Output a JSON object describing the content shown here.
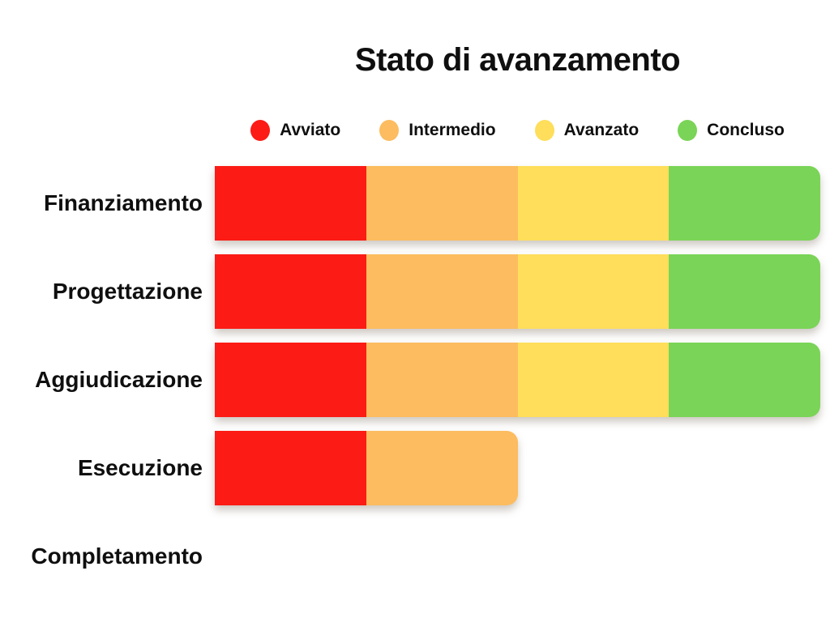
{
  "page": {
    "background": "#ffffff",
    "text_color": "#0f0f0f"
  },
  "chart_data": {
    "type": "bar",
    "orientation": "horizontal",
    "stacked": true,
    "title": "Stato di avanzamento",
    "xlabel": "",
    "ylabel": "",
    "xlim": [
      0,
      100
    ],
    "grid": false,
    "axes_shown": false,
    "legend_position": "top",
    "categories": [
      "Finanziamento",
      "Progettazione",
      "Aggiudicazione",
      "Esecuzione",
      "Completamento"
    ],
    "series": [
      {
        "name": "Avviato",
        "color": "#fc1b15",
        "values": [
          25,
          25,
          25,
          25,
          0
        ]
      },
      {
        "name": "Intermedio",
        "color": "#fcbc5f",
        "values": [
          25,
          25,
          25,
          25,
          0
        ]
      },
      {
        "name": "Avanzato",
        "color": "#fede5a",
        "values": [
          25,
          25,
          25,
          0,
          0
        ]
      },
      {
        "name": "Concluso",
        "color": "#7ad457",
        "values": [
          25,
          25,
          25,
          0,
          0
        ]
      }
    ]
  },
  "legend": {
    "items": [
      {
        "label": "Avviato",
        "color": "#fc1b15"
      },
      {
        "label": "Intermedio",
        "color": "#fcbc5f"
      },
      {
        "label": "Avanzato",
        "color": "#fede5a"
      },
      {
        "label": "Concluso",
        "color": "#7ad457"
      }
    ]
  }
}
